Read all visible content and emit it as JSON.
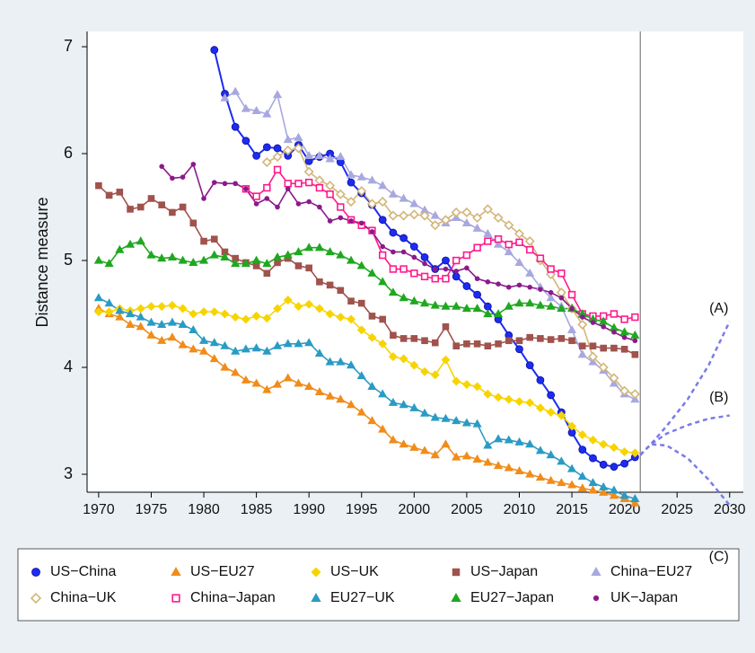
{
  "chart_data": {
    "type": "line",
    "ylabel": "Distance measure",
    "x": [
      1970,
      1971,
      1972,
      1973,
      1974,
      1975,
      1976,
      1977,
      1978,
      1979,
      1980,
      1981,
      1982,
      1983,
      1984,
      1985,
      1986,
      1987,
      1988,
      1989,
      1990,
      1991,
      1992,
      1993,
      1994,
      1995,
      1996,
      1997,
      1998,
      1999,
      2000,
      2001,
      2002,
      2003,
      2004,
      2005,
      2006,
      2007,
      2008,
      2009,
      2010,
      2011,
      2012,
      2013,
      2014,
      2015,
      2016,
      2017,
      2018,
      2019,
      2020,
      2021
    ],
    "xlim": [
      1968.9,
      2031.3
    ],
    "xticks": [
      1970,
      1975,
      1980,
      1985,
      1990,
      1995,
      2000,
      2005,
      2010,
      2015,
      2020,
      2025,
      2030
    ],
    "ylim": [
      2.832,
      7.143
    ],
    "yticks": [
      3,
      4,
      5,
      6,
      7
    ],
    "vline": 2021.5,
    "series": [
      {
        "name": "US−China",
        "color": "#1c2cf0",
        "marker": "circle",
        "filled": true,
        "values": [
          null,
          null,
          null,
          null,
          null,
          null,
          null,
          null,
          null,
          null,
          null,
          6.97,
          6.56,
          6.25,
          6.12,
          5.98,
          6.06,
          6.05,
          5.98,
          6.08,
          5.93,
          5.97,
          6.0,
          5.92,
          5.73,
          5.63,
          5.52,
          5.38,
          5.26,
          5.21,
          5.13,
          5.03,
          4.92,
          5.0,
          4.85,
          4.76,
          4.68,
          4.57,
          4.45,
          4.3,
          4.17,
          4.02,
          3.88,
          3.74,
          3.58,
          3.39,
          3.23,
          3.15,
          3.09,
          3.07,
          3.1,
          3.16
        ]
      },
      {
        "name": "US−EU27",
        "color": "#f08c1a",
        "marker": "triangle",
        "filled": true,
        "values": [
          4.55,
          4.5,
          4.47,
          4.4,
          4.38,
          4.3,
          4.25,
          4.28,
          4.21,
          4.17,
          4.15,
          4.08,
          4.0,
          3.95,
          3.88,
          3.85,
          3.79,
          3.84,
          3.9,
          3.85,
          3.82,
          3.77,
          3.73,
          3.7,
          3.65,
          3.58,
          3.5,
          3.42,
          3.32,
          3.28,
          3.25,
          3.22,
          3.18,
          3.28,
          3.16,
          3.17,
          3.14,
          3.11,
          3.08,
          3.06,
          3.03,
          3.0,
          2.97,
          2.94,
          2.92,
          2.9,
          2.87,
          2.85,
          2.83,
          2.8,
          2.77,
          2.73
        ]
      },
      {
        "name": "US−UK",
        "color": "#f7d400",
        "marker": "diamond",
        "filled": true,
        "values": [
          4.52,
          4.52,
          4.55,
          4.53,
          4.55,
          4.57,
          4.57,
          4.58,
          4.55,
          4.5,
          4.52,
          4.52,
          4.5,
          4.47,
          4.45,
          4.48,
          4.46,
          4.55,
          4.63,
          4.57,
          4.59,
          4.55,
          4.5,
          4.47,
          4.45,
          4.35,
          4.28,
          4.22,
          4.1,
          4.08,
          4.02,
          3.96,
          3.93,
          4.07,
          3.87,
          3.84,
          3.82,
          3.75,
          3.72,
          3.7,
          3.68,
          3.67,
          3.62,
          3.58,
          3.55,
          3.45,
          3.37,
          3.32,
          3.28,
          3.25,
          3.21,
          3.2
        ]
      },
      {
        "name": "US−Japan",
        "color": "#a0524d",
        "marker": "square",
        "filled": true,
        "values": [
          5.7,
          5.61,
          5.64,
          5.48,
          5.5,
          5.58,
          5.52,
          5.45,
          5.5,
          5.35,
          5.18,
          5.2,
          5.08,
          5.02,
          4.98,
          4.95,
          4.88,
          4.98,
          5.02,
          4.95,
          4.93,
          4.8,
          4.77,
          4.72,
          4.62,
          4.6,
          4.48,
          4.45,
          4.3,
          4.27,
          4.27,
          4.25,
          4.23,
          4.38,
          4.2,
          4.22,
          4.22,
          4.2,
          4.22,
          4.25,
          4.25,
          4.28,
          4.27,
          4.26,
          4.27,
          4.25,
          4.2,
          4.2,
          4.18,
          4.18,
          4.17,
          4.12
        ]
      },
      {
        "name": "China−EU27",
        "color": "#a8a8e0",
        "marker": "triangle",
        "filled": true,
        "values": [
          null,
          null,
          null,
          null,
          null,
          null,
          null,
          null,
          null,
          null,
          null,
          null,
          6.52,
          6.58,
          6.42,
          6.4,
          6.37,
          6.55,
          6.13,
          6.15,
          5.98,
          5.98,
          5.95,
          5.97,
          5.8,
          5.78,
          5.75,
          5.7,
          5.62,
          5.58,
          5.53,
          5.47,
          5.42,
          5.35,
          5.4,
          5.35,
          5.3,
          5.25,
          5.15,
          5.08,
          4.98,
          4.88,
          4.75,
          4.65,
          4.57,
          4.35,
          4.12,
          4.05,
          3.97,
          3.85,
          3.75,
          3.7
        ]
      },
      {
        "name": "China−UK",
        "color": "#d2b67a",
        "marker": "diamond",
        "filled": false,
        "values": [
          null,
          null,
          null,
          null,
          null,
          null,
          null,
          null,
          null,
          null,
          null,
          null,
          null,
          null,
          null,
          null,
          5.92,
          5.97,
          6.03,
          6.05,
          5.83,
          5.75,
          5.7,
          5.62,
          5.55,
          5.65,
          5.53,
          5.55,
          5.42,
          5.42,
          5.43,
          5.42,
          5.33,
          5.38,
          5.45,
          5.45,
          5.4,
          5.48,
          5.4,
          5.33,
          5.25,
          5.18,
          5.0,
          4.87,
          4.7,
          4.55,
          4.4,
          4.1,
          4.0,
          3.9,
          3.78,
          3.75
        ]
      },
      {
        "name": "China−Japan",
        "color": "#ff1a8c",
        "marker": "square",
        "filled": false,
        "values": [
          null,
          null,
          null,
          null,
          null,
          null,
          null,
          null,
          null,
          null,
          null,
          null,
          null,
          null,
          5.67,
          5.6,
          5.68,
          5.85,
          5.72,
          5.72,
          5.73,
          5.68,
          5.62,
          5.5,
          5.38,
          5.33,
          5.28,
          5.05,
          4.92,
          4.92,
          4.88,
          4.85,
          4.83,
          4.83,
          5.0,
          5.05,
          5.12,
          5.18,
          5.2,
          5.15,
          5.17,
          5.1,
          5.02,
          4.92,
          4.88,
          4.68,
          4.5,
          4.48,
          4.48,
          4.5,
          4.45,
          4.47
        ]
      },
      {
        "name": "EU27−UK",
        "color": "#2a9bc4",
        "marker": "triangle",
        "filled": true,
        "values": [
          4.65,
          4.6,
          4.53,
          4.5,
          4.47,
          4.42,
          4.4,
          4.42,
          4.4,
          4.35,
          4.25,
          4.23,
          4.2,
          4.15,
          4.17,
          4.18,
          4.15,
          4.2,
          4.22,
          4.22,
          4.23,
          4.13,
          4.05,
          4.05,
          4.02,
          3.92,
          3.82,
          3.75,
          3.67,
          3.65,
          3.62,
          3.57,
          3.53,
          3.52,
          3.5,
          3.48,
          3.47,
          3.27,
          3.33,
          3.32,
          3.3,
          3.28,
          3.22,
          3.18,
          3.12,
          3.05,
          2.98,
          2.92,
          2.88,
          2.85,
          2.8,
          2.77
        ]
      },
      {
        "name": "EU27−Japan",
        "color": "#1fa81f",
        "marker": "triangle",
        "filled": true,
        "values": [
          5.0,
          4.97,
          5.1,
          5.15,
          5.18,
          5.05,
          5.02,
          5.03,
          5.0,
          4.98,
          5.0,
          5.05,
          5.03,
          4.97,
          4.97,
          5.0,
          4.97,
          5.03,
          5.05,
          5.08,
          5.12,
          5.12,
          5.08,
          5.05,
          5.0,
          4.95,
          4.88,
          4.8,
          4.7,
          4.65,
          4.62,
          4.6,
          4.58,
          4.57,
          4.57,
          4.55,
          4.55,
          4.5,
          4.5,
          4.57,
          4.6,
          4.6,
          4.58,
          4.57,
          4.55,
          4.55,
          4.5,
          4.45,
          4.43,
          4.37,
          4.33,
          4.3
        ]
      },
      {
        "name": "UK−Japan",
        "color": "#8b1a8b",
        "marker": "dot",
        "filled": true,
        "values": [
          null,
          null,
          null,
          null,
          null,
          null,
          5.88,
          5.77,
          5.78,
          5.9,
          5.58,
          5.73,
          5.72,
          5.72,
          5.67,
          5.53,
          5.58,
          5.5,
          5.67,
          5.53,
          5.55,
          5.5,
          5.37,
          5.4,
          5.37,
          5.35,
          5.27,
          5.13,
          5.08,
          5.08,
          5.03,
          4.97,
          4.92,
          4.92,
          4.9,
          4.93,
          4.83,
          4.8,
          4.78,
          4.75,
          4.77,
          4.75,
          4.73,
          4.7,
          4.65,
          4.55,
          4.47,
          4.42,
          4.38,
          4.33,
          4.28,
          4.25
        ]
      }
    ],
    "projections": [
      {
        "label": "(A)",
        "color": "#7b7bea",
        "x": [
          2021.5,
          2022.5,
          2024,
          2026,
          2028,
          2030
        ],
        "values": [
          3.18,
          3.28,
          3.45,
          3.7,
          4.02,
          4.43
        ]
      },
      {
        "label": "(B)",
        "color": "#7b7bea",
        "x": [
          2021.5,
          2022.5,
          2024,
          2026,
          2028,
          2030
        ],
        "values": [
          3.18,
          3.28,
          3.38,
          3.46,
          3.52,
          3.55
        ]
      },
      {
        "label": "(C)",
        "color": "#7b7bea",
        "x": [
          2021.5,
          2022.5,
          2024,
          2026,
          2028,
          2030
        ],
        "values": [
          3.18,
          3.28,
          3.27,
          3.15,
          2.95,
          2.71
        ]
      }
    ]
  }
}
